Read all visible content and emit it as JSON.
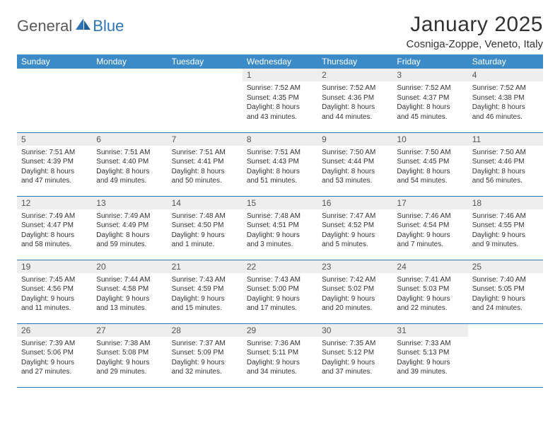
{
  "logo": {
    "part1": "General",
    "part2": "Blue"
  },
  "title": "January 2025",
  "location": "Cosniga-Zoppe, Veneto, Italy",
  "colors": {
    "header_bg": "#3b8bc9",
    "header_fg": "#ffffff",
    "daynum_bg": "#eeeeee",
    "row_border": "#2f75b5",
    "logo_gray": "#5a5a5a",
    "logo_blue": "#2f75b5",
    "text": "#333333",
    "page_bg": "#ffffff"
  },
  "weekdays": [
    "Sunday",
    "Monday",
    "Tuesday",
    "Wednesday",
    "Thursday",
    "Friday",
    "Saturday"
  ],
  "weeks": [
    [
      null,
      null,
      null,
      {
        "n": "1",
        "sr": "7:52 AM",
        "ss": "4:35 PM",
        "dl": "8 hours and 43 minutes."
      },
      {
        "n": "2",
        "sr": "7:52 AM",
        "ss": "4:36 PM",
        "dl": "8 hours and 44 minutes."
      },
      {
        "n": "3",
        "sr": "7:52 AM",
        "ss": "4:37 PM",
        "dl": "8 hours and 45 minutes."
      },
      {
        "n": "4",
        "sr": "7:52 AM",
        "ss": "4:38 PM",
        "dl": "8 hours and 46 minutes."
      }
    ],
    [
      {
        "n": "5",
        "sr": "7:51 AM",
        "ss": "4:39 PM",
        "dl": "8 hours and 47 minutes."
      },
      {
        "n": "6",
        "sr": "7:51 AM",
        "ss": "4:40 PM",
        "dl": "8 hours and 49 minutes."
      },
      {
        "n": "7",
        "sr": "7:51 AM",
        "ss": "4:41 PM",
        "dl": "8 hours and 50 minutes."
      },
      {
        "n": "8",
        "sr": "7:51 AM",
        "ss": "4:43 PM",
        "dl": "8 hours and 51 minutes."
      },
      {
        "n": "9",
        "sr": "7:50 AM",
        "ss": "4:44 PM",
        "dl": "8 hours and 53 minutes."
      },
      {
        "n": "10",
        "sr": "7:50 AM",
        "ss": "4:45 PM",
        "dl": "8 hours and 54 minutes."
      },
      {
        "n": "11",
        "sr": "7:50 AM",
        "ss": "4:46 PM",
        "dl": "8 hours and 56 minutes."
      }
    ],
    [
      {
        "n": "12",
        "sr": "7:49 AM",
        "ss": "4:47 PM",
        "dl": "8 hours and 58 minutes."
      },
      {
        "n": "13",
        "sr": "7:49 AM",
        "ss": "4:49 PM",
        "dl": "8 hours and 59 minutes."
      },
      {
        "n": "14",
        "sr": "7:48 AM",
        "ss": "4:50 PM",
        "dl": "9 hours and 1 minute."
      },
      {
        "n": "15",
        "sr": "7:48 AM",
        "ss": "4:51 PM",
        "dl": "9 hours and 3 minutes."
      },
      {
        "n": "16",
        "sr": "7:47 AM",
        "ss": "4:52 PM",
        "dl": "9 hours and 5 minutes."
      },
      {
        "n": "17",
        "sr": "7:46 AM",
        "ss": "4:54 PM",
        "dl": "9 hours and 7 minutes."
      },
      {
        "n": "18",
        "sr": "7:46 AM",
        "ss": "4:55 PM",
        "dl": "9 hours and 9 minutes."
      }
    ],
    [
      {
        "n": "19",
        "sr": "7:45 AM",
        "ss": "4:56 PM",
        "dl": "9 hours and 11 minutes."
      },
      {
        "n": "20",
        "sr": "7:44 AM",
        "ss": "4:58 PM",
        "dl": "9 hours and 13 minutes."
      },
      {
        "n": "21",
        "sr": "7:43 AM",
        "ss": "4:59 PM",
        "dl": "9 hours and 15 minutes."
      },
      {
        "n": "22",
        "sr": "7:43 AM",
        "ss": "5:00 PM",
        "dl": "9 hours and 17 minutes."
      },
      {
        "n": "23",
        "sr": "7:42 AM",
        "ss": "5:02 PM",
        "dl": "9 hours and 20 minutes."
      },
      {
        "n": "24",
        "sr": "7:41 AM",
        "ss": "5:03 PM",
        "dl": "9 hours and 22 minutes."
      },
      {
        "n": "25",
        "sr": "7:40 AM",
        "ss": "5:05 PM",
        "dl": "9 hours and 24 minutes."
      }
    ],
    [
      {
        "n": "26",
        "sr": "7:39 AM",
        "ss": "5:06 PM",
        "dl": "9 hours and 27 minutes."
      },
      {
        "n": "27",
        "sr": "7:38 AM",
        "ss": "5:08 PM",
        "dl": "9 hours and 29 minutes."
      },
      {
        "n": "28",
        "sr": "7:37 AM",
        "ss": "5:09 PM",
        "dl": "9 hours and 32 minutes."
      },
      {
        "n": "29",
        "sr": "7:36 AM",
        "ss": "5:11 PM",
        "dl": "9 hours and 34 minutes."
      },
      {
        "n": "30",
        "sr": "7:35 AM",
        "ss": "5:12 PM",
        "dl": "9 hours and 37 minutes."
      },
      {
        "n": "31",
        "sr": "7:33 AM",
        "ss": "5:13 PM",
        "dl": "9 hours and 39 minutes."
      },
      null
    ]
  ],
  "labels": {
    "sunrise": "Sunrise:",
    "sunset": "Sunset:",
    "daylight": "Daylight:"
  }
}
